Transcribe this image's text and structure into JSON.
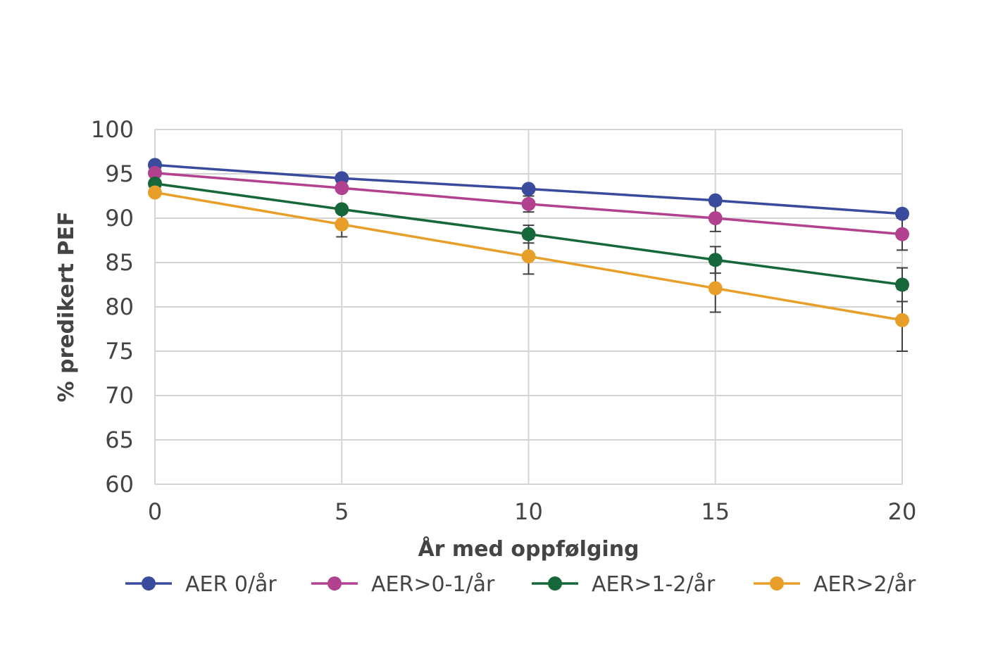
{
  "chart_data": {
    "type": "line",
    "title": "",
    "xlabel": "År med oppfølging",
    "ylabel": "% predikert PEF",
    "x": [
      0,
      5,
      10,
      15,
      20
    ],
    "xlim": [
      0,
      20
    ],
    "ylim": [
      60,
      100
    ],
    "x_ticks": [
      0,
      5,
      10,
      15,
      20
    ],
    "y_ticks": [
      60,
      65,
      70,
      75,
      80,
      85,
      90,
      95,
      100
    ],
    "grid": true,
    "legend_position": "bottom",
    "series": [
      {
        "name": "AER 0/år",
        "color": "#3a4a9c",
        "values": [
          96.0,
          94.5,
          93.3,
          92.0,
          90.5
        ],
        "error": [
          0,
          0,
          0,
          0,
          0
        ]
      },
      {
        "name": "AER>0-1/år",
        "color": "#b2418f",
        "values": [
          95.1,
          93.4,
          91.6,
          90.0,
          88.2
        ],
        "error": [
          0,
          0,
          0.9,
          1.5,
          1.8
        ]
      },
      {
        "name": "AER>1-2/år",
        "color": "#16683a",
        "values": [
          93.9,
          91.0,
          88.2,
          85.3,
          82.5
        ],
        "error": [
          0,
          0,
          1.0,
          1.5,
          1.9
        ]
      },
      {
        "name": "AER>2/år",
        "color": "#e89f2a",
        "values": [
          92.9,
          89.3,
          85.7,
          82.1,
          78.5
        ],
        "error": [
          0,
          1.4,
          2.0,
          2.7,
          3.5
        ]
      }
    ]
  }
}
